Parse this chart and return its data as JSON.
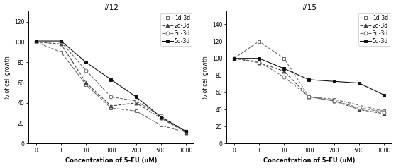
{
  "x_values": [
    0,
    1,
    10,
    100,
    200,
    500,
    1000
  ],
  "chart12": {
    "title": "#12",
    "ylim": [
      0,
      130
    ],
    "yticks": [
      0,
      20,
      40,
      60,
      80,
      100,
      120
    ],
    "series": {
      "1d-3d": [
        100,
        90,
        58,
        35,
        32,
        18,
        11
      ],
      "2d-3d": [
        100,
        98,
        60,
        37,
        40,
        25,
        11
      ],
      "3d-3d": [
        100,
        100,
        72,
        46,
        42,
        27,
        12
      ],
      "5d-3d": [
        101,
        101,
        80,
        63,
        46,
        26,
        12
      ]
    }
  },
  "chart15": {
    "title": "#15",
    "ylim": [
      0,
      155
    ],
    "yticks": [
      0,
      20,
      40,
      60,
      80,
      100,
      120,
      140
    ],
    "series": {
      "1d-3d": [
        100,
        120,
        100,
        55,
        52,
        45,
        38
      ],
      "2d-3d": [
        100,
        95,
        85,
        55,
        50,
        40,
        35
      ],
      "3d-3d": [
        100,
        96,
        78,
        55,
        50,
        42,
        37
      ],
      "5d-3d": [
        100,
        100,
        88,
        75,
        73,
        71,
        57
      ]
    }
  },
  "line_styles": {
    "1d-3d": {
      "marker": "s",
      "linestyle": "--",
      "color": "#666666",
      "filled": false,
      "markersize": 3.5
    },
    "2d-3d": {
      "marker": "^",
      "linestyle": "--",
      "color": "#444444",
      "filled": true,
      "markersize": 3.5
    },
    "3d-3d": {
      "marker": "o",
      "linestyle": "--",
      "color": "#666666",
      "filled": false,
      "markersize": 3.5
    },
    "5d-3d": {
      "marker": "s",
      "linestyle": "-",
      "color": "#111111",
      "filled": true,
      "markersize": 3.5
    }
  },
  "xlabel": "Concentration of 5-FU (uM)",
  "ylabel": "% of cell growth",
  "background_color": "#ffffff",
  "font_size": 5.5,
  "title_font_size": 7.5,
  "label_font_size": 6.0
}
